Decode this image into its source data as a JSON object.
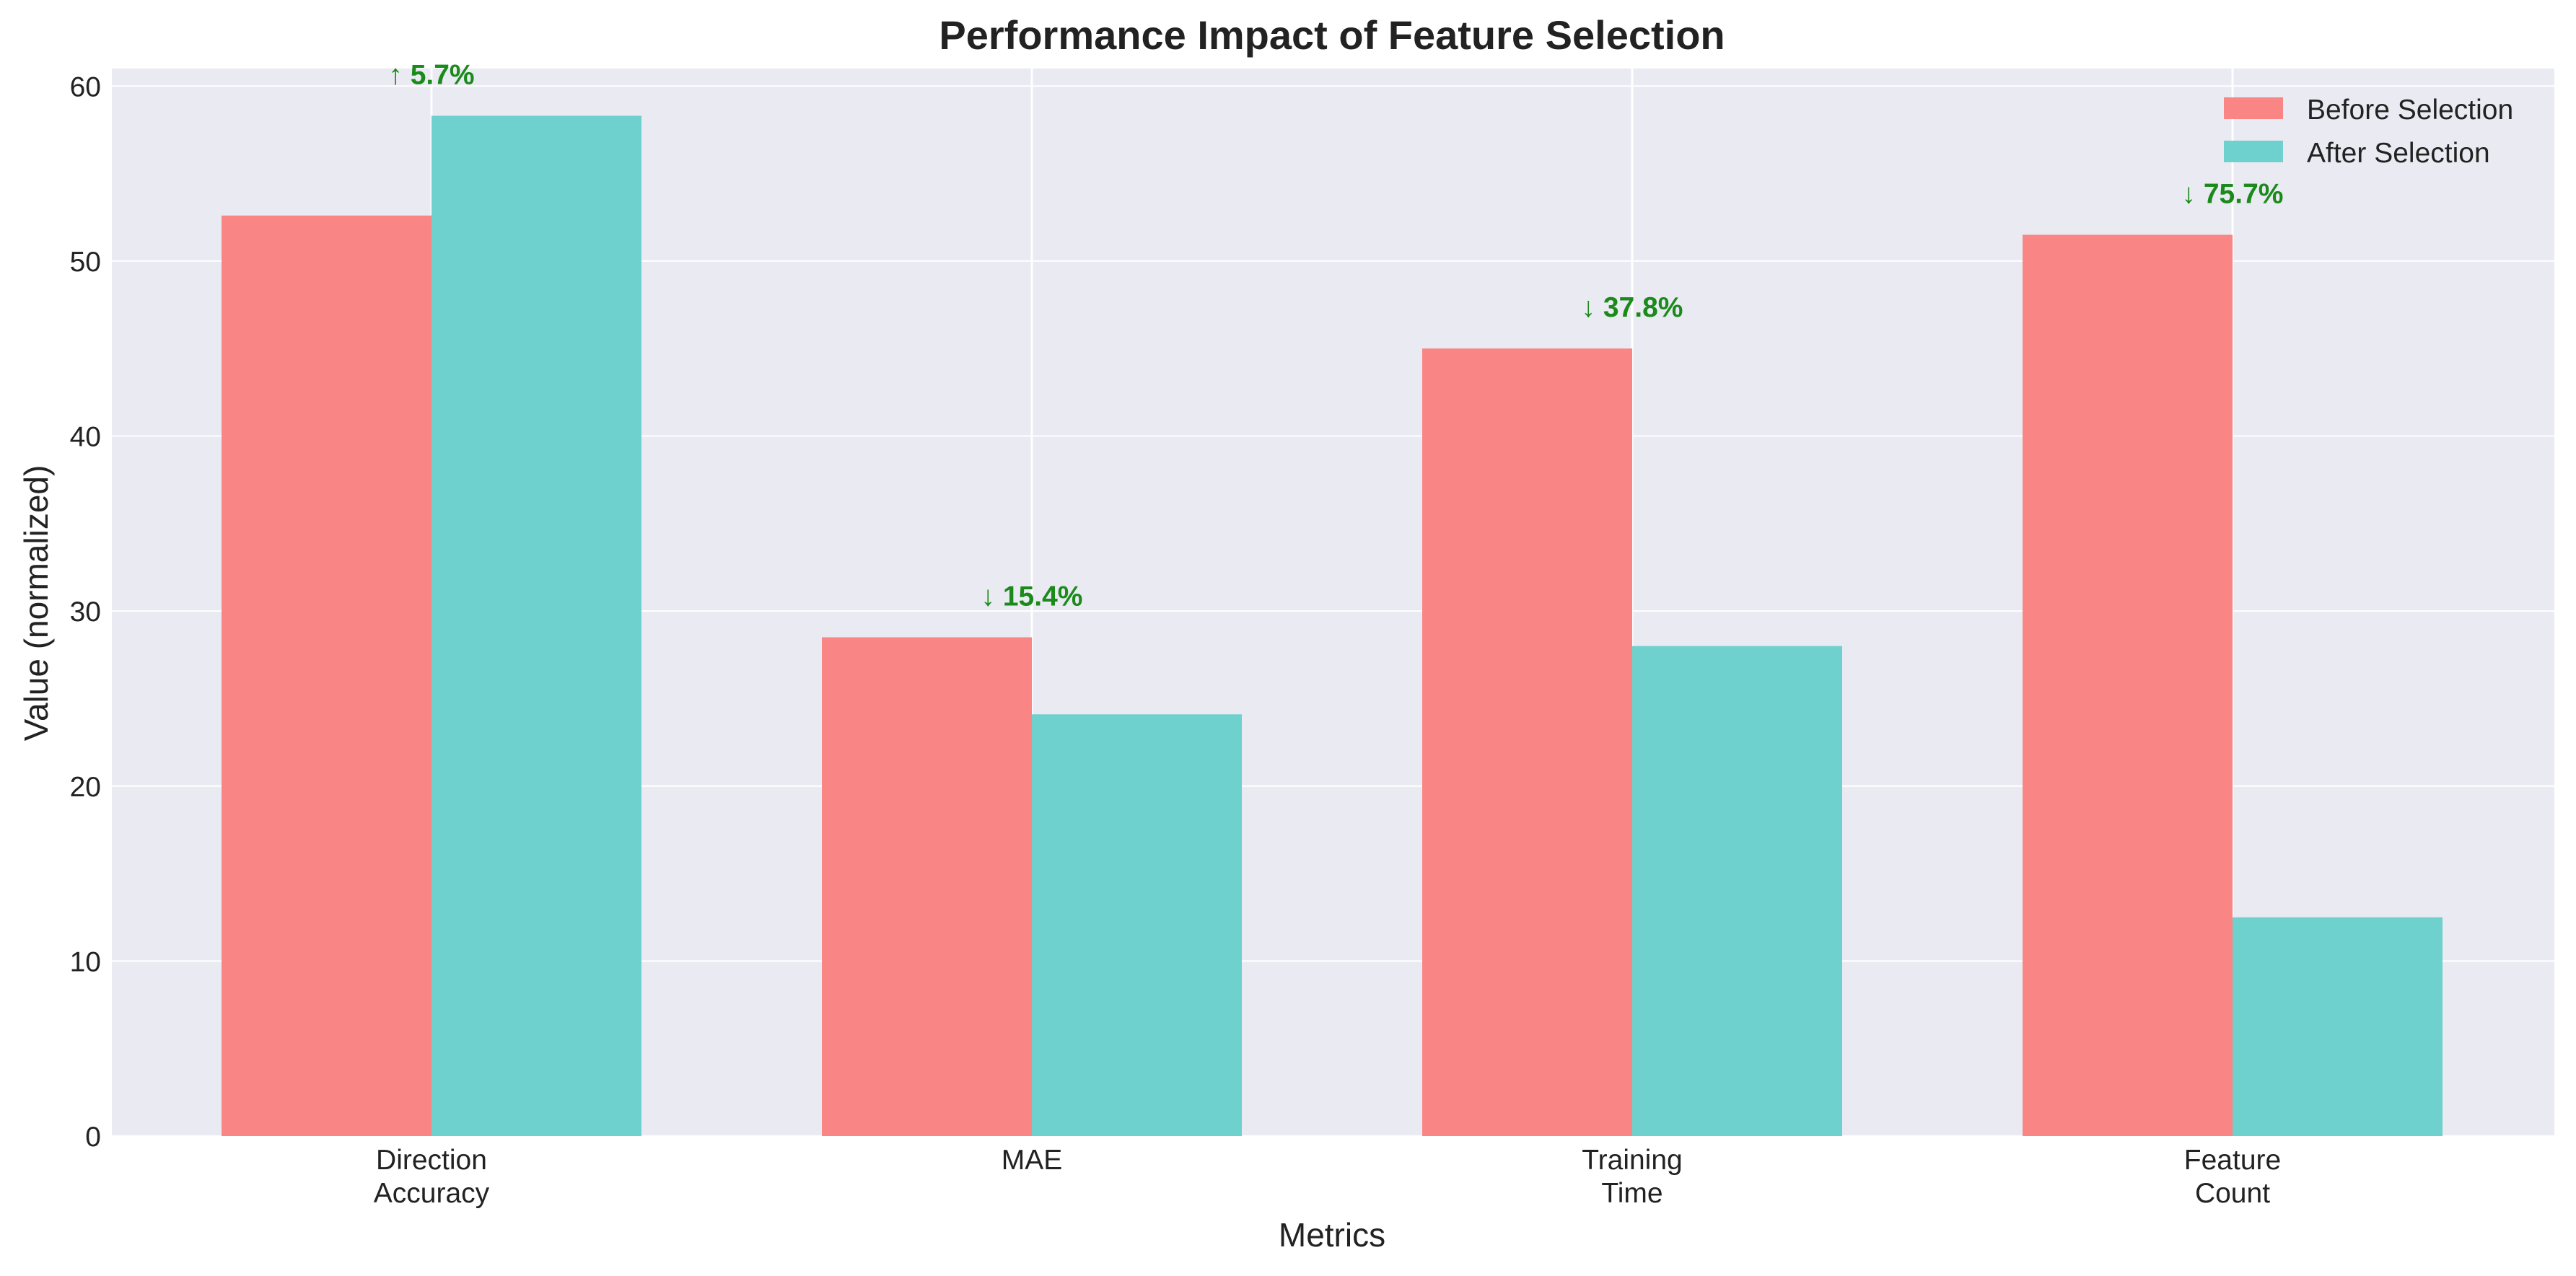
{
  "chart_data": {
    "type": "bar",
    "title": "Performance Impact of Feature Selection",
    "xlabel": "Metrics",
    "ylabel": "Value (normalized)",
    "categories": [
      [
        "Direction",
        "Accuracy"
      ],
      [
        "MAE"
      ],
      [
        "Training",
        "Time"
      ],
      [
        "Feature",
        "Count"
      ]
    ],
    "series": [
      {
        "name": "Before Selection",
        "color": "#fa8585",
        "values": [
          52.6,
          28.5,
          45.0,
          51.5
        ]
      },
      {
        "name": "After Selection",
        "color": "#6fd1cd",
        "values": [
          58.3,
          24.1,
          28.0,
          12.5
        ]
      }
    ],
    "annotations": [
      {
        "category": 0,
        "text": "↑ 5.7%"
      },
      {
        "category": 1,
        "text": "↓ 15.4%"
      },
      {
        "category": 2,
        "text": "↓ 37.8%"
      },
      {
        "category": 3,
        "text": "↓ 75.7%"
      }
    ],
    "annotation_color": "#1a8a1a",
    "ylim": [
      0,
      61
    ],
    "yticks": [
      0,
      10,
      20,
      30,
      40,
      50,
      60
    ],
    "legend_position": "top-right",
    "grid": true,
    "plot_background": "#eaeaf2"
  }
}
